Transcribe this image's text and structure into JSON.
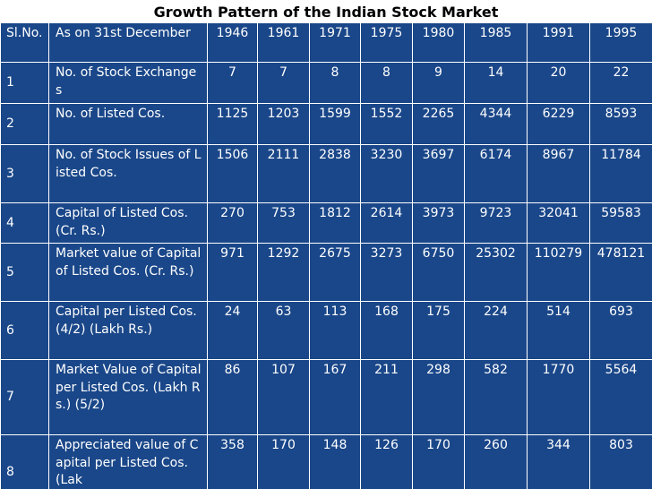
{
  "title": "Growth Pattern of the Indian Stock Market",
  "table": {
    "header": {
      "sl": "Sl.No.",
      "desc": "As on 31st December",
      "years": [
        "1946",
        "1961",
        "1971",
        "1975",
        "1980",
        "1985",
        "1991",
        "1995"
      ]
    },
    "rows": [
      {
        "sl": "1",
        "desc": "No. of Stock Exchanges",
        "values": [
          "7",
          "7",
          "8",
          "8",
          "9",
          "14",
          "20",
          "22"
        ]
      },
      {
        "sl": "2",
        "desc": "No. of Listed Cos.",
        "values": [
          "1125",
          "1203",
          "1599",
          "1552",
          "2265",
          "4344",
          "6229",
          "8593"
        ]
      },
      {
        "sl": "3",
        "desc": "No. of Stock Issues of Listed Cos.",
        "values": [
          "1506",
          "2111",
          "2838",
          "3230",
          "3697",
          "6174",
          "8967",
          "11784"
        ]
      },
      {
        "sl": "4",
        "desc": "Capital of Listed Cos. (Cr. Rs.)",
        "values": [
          "270",
          "753",
          "1812",
          "2614",
          "3973",
          "9723",
          "32041",
          "59583"
        ]
      },
      {
        "sl": "5",
        "desc": "Market value of Capital of Listed Cos. (Cr. Rs.)",
        "values": [
          "971",
          "1292",
          "2675",
          "3273",
          "6750",
          "25302",
          "110279",
          "478121"
        ]
      },
      {
        "sl": "6",
        "desc": "Capital per Listed Cos. (4/2) (Lakh Rs.)",
        "values": [
          "24",
          "63",
          "113",
          "168",
          "175",
          "224",
          "514",
          "693"
        ]
      },
      {
        "sl": "7",
        "desc": "Market Value of Capital per Listed Cos. (Lakh Rs.) (5/2)",
        "values": [
          "86",
          "107",
          "167",
          "211",
          "298",
          "582",
          "1770",
          "5564"
        ]
      },
      {
        "sl": "8",
        "desc": "Appreciated value of Capital per Listed Cos. (Lak",
        "values": [
          "358",
          "170",
          "148",
          "126",
          "170",
          "260",
          "344",
          "803"
        ]
      }
    ]
  }
}
